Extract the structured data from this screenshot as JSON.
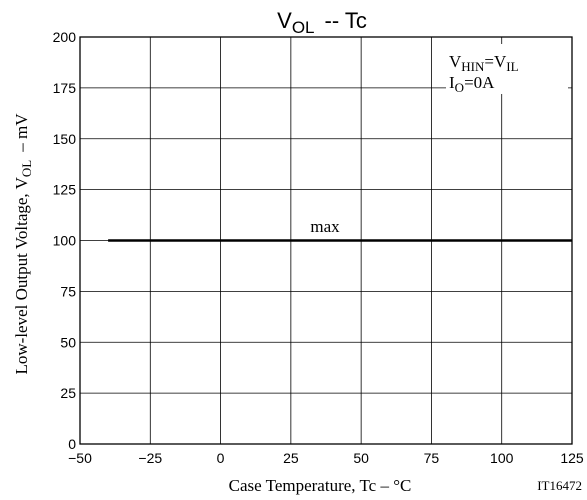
{
  "chart_data": {
    "type": "line",
    "title": "VOL -- Tc",
    "title_parts": {
      "v": "V",
      "sub": "OL",
      "rest": "-- Tc"
    },
    "xlabel": "Case Temperature, Tc  –  °C",
    "ylabel": {
      "main": "Low-level Output Voltage, V",
      "sub": "OL",
      "unit": "–  mV"
    },
    "xlim": [
      -50,
      125
    ],
    "ylim": [
      0,
      200
    ],
    "xticks": [
      -50,
      -25,
      0,
      25,
      50,
      75,
      100,
      125
    ],
    "yticks": [
      0,
      25,
      50,
      75,
      100,
      125,
      150,
      175,
      200
    ],
    "grid": true,
    "series": [
      {
        "name": "max",
        "x": [
          -40,
          125
        ],
        "y": [
          100,
          100
        ]
      }
    ],
    "conditions": [
      {
        "v": "V",
        "sub": "HIN",
        "rest": "=V",
        "sub2": "IL"
      },
      {
        "v": "I",
        "sub": "O",
        "rest": "=0A",
        "sub2": ""
      }
    ],
    "code": "IT16472"
  }
}
